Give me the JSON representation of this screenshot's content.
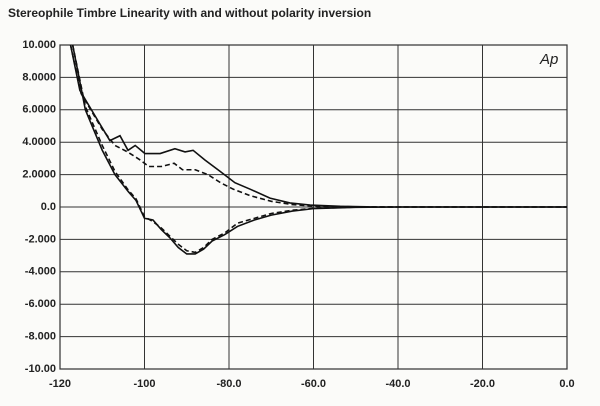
{
  "chart_data": {
    "type": "line",
    "title": "Stereophile  Timbre Linearity with and without polarity inversion",
    "annotation": "Ap",
    "xlim": [
      -120,
      0
    ],
    "xticks": [
      -120,
      -100,
      {
        "value": -80,
        "label": "-80.0"
      },
      {
        "value": -60,
        "label": "-60.0"
      },
      {
        "value": -40,
        "label": "-40.0"
      },
      {
        "value": -20,
        "label": "-20.0"
      },
      {
        "value": 0,
        "label": "0.0"
      }
    ],
    "ylim": [
      -10,
      10
    ],
    "yticks": [
      {
        "value": 10,
        "label": "10.000"
      },
      {
        "value": 8,
        "label": "8.0000"
      },
      {
        "value": 6,
        "label": "6.0000"
      },
      {
        "value": 4,
        "label": "4.0000"
      },
      {
        "value": 2,
        "label": "2.0000"
      },
      {
        "value": 0,
        "label": "0.0"
      },
      {
        "value": -2,
        "label": "-2.000"
      },
      {
        "value": -4,
        "label": "-4.000"
      },
      {
        "value": -6,
        "label": "-6.000"
      },
      {
        "value": -8,
        "label": "-8.000"
      },
      {
        "value": -10,
        "label": "-10.00"
      }
    ],
    "grid": true,
    "series": [
      {
        "color": "#111111",
        "dash": "solid",
        "x": [
          -117.5,
          -115.3,
          -110.5,
          -108.2,
          -105.8,
          -103.9,
          -102.2,
          -99.9,
          -96.3,
          -92.8,
          -90.4,
          -88.5,
          -85.7,
          -82.1,
          -78.6,
          -75,
          -70.3,
          -65.6,
          -60.8,
          -53.7,
          -44.3,
          0
        ],
        "values": [
          10,
          7.2,
          5.1,
          4.1,
          4.4,
          3.5,
          3.8,
          3.3,
          3.3,
          3.6,
          3.4,
          3.5,
          2.9,
          2.2,
          1.5,
          1.1,
          0.55,
          0.25,
          0.12,
          0.04,
          0,
          0
        ]
      },
      {
        "color": "#111111",
        "dash": "dashed",
        "x": [
          -117.5,
          -115,
          -110,
          -107,
          -104,
          -101,
          -99,
          -96,
          -93,
          -91,
          -88,
          -85,
          -82,
          -79,
          -75,
          -70,
          -65,
          -60,
          -50,
          -40,
          0
        ],
        "values": [
          10,
          7.0,
          4.8,
          3.8,
          3.4,
          2.9,
          2.5,
          2.5,
          2.7,
          2.3,
          2.3,
          2.0,
          1.5,
          1.1,
          0.7,
          0.35,
          0.15,
          0.06,
          0.01,
          0,
          0
        ]
      },
      {
        "color": "#111111",
        "dash": "solid",
        "x": [
          -117,
          -114,
          -110,
          -107,
          -104,
          -102,
          -100,
          -98,
          -96,
          -94,
          -92,
          -90,
          -88,
          -86,
          -84,
          -81,
          -78,
          -74,
          -70,
          -65,
          -60,
          -50,
          -40,
          0
        ],
        "values": [
          10,
          6.0,
          3.5,
          2.0,
          1.0,
          0.4,
          -0.7,
          -0.8,
          -1.4,
          -1.9,
          -2.5,
          -2.9,
          -2.9,
          -2.6,
          -2.1,
          -1.7,
          -1.2,
          -0.8,
          -0.5,
          -0.25,
          -0.1,
          -0.02,
          0,
          0
        ]
      },
      {
        "color": "#111111",
        "dash": "dashed",
        "x": [
          -117,
          -114,
          -110,
          -107,
          -104,
          -102,
          -100,
          -98,
          -96,
          -94,
          -92,
          -90,
          -88,
          -86,
          -84,
          -81,
          -78,
          -74,
          -70,
          -65,
          -60,
          -50,
          -40,
          0
        ],
        "values": [
          10,
          6.2,
          3.8,
          2.2,
          1.1,
          0.5,
          -0.6,
          -0.9,
          -1.3,
          -1.8,
          -2.3,
          -2.7,
          -2.8,
          -2.5,
          -2.0,
          -1.6,
          -1.0,
          -0.7,
          -0.4,
          -0.2,
          -0.08,
          -0.01,
          0,
          0
        ]
      }
    ]
  }
}
